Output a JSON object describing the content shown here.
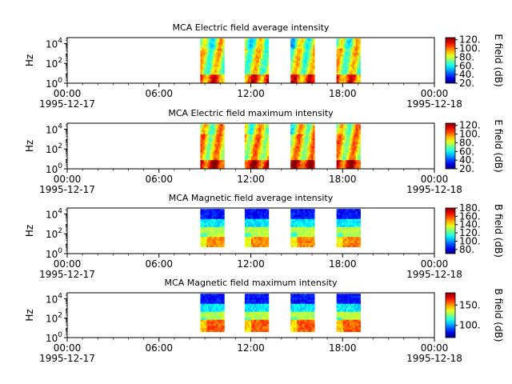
{
  "chart_data": [
    {
      "type": "heatmap",
      "title": "MCA  Electric field average intensity",
      "ylabel": "Hz",
      "colorbar_label": "E field (dB)",
      "colorbar_ticks": [
        "20.",
        "40.",
        "60.",
        "80.",
        "100.",
        "120."
      ],
      "colorbar_range": [
        20,
        125
      ],
      "yticks": [
        {
          "base": "10",
          "exp": "0"
        },
        {
          "base": "10",
          "exp": "2"
        },
        {
          "base": "10",
          "exp": "4"
        }
      ],
      "xticks": [
        {
          "time": "00:00",
          "date": "1995-12-17"
        },
        {
          "time": "06:00",
          "date": ""
        },
        {
          "time": "12:00",
          "date": ""
        },
        {
          "time": "18:00",
          "date": ""
        },
        {
          "time": "00:00",
          "date": "1995-12-18"
        }
      ],
      "xlim_hours": [
        0,
        24
      ],
      "ylim_log10": [
        0,
        4.6
      ],
      "data_windows_hours": [
        [
          8.7,
          10.2
        ],
        [
          11.6,
          13.1
        ],
        [
          14.6,
          16.1
        ],
        [
          17.6,
          19.1
        ]
      ],
      "freq_range_log10": [
        0.1,
        4.5
      ]
    },
    {
      "type": "heatmap",
      "title": "MCA  Electric field maximum intensity",
      "ylabel": "Hz",
      "colorbar_label": "E field (dB)",
      "colorbar_ticks": [
        "20.",
        "40.",
        "60.",
        "80.",
        "100.",
        "120."
      ],
      "colorbar_range": [
        20,
        125
      ],
      "yticks": [
        {
          "base": "10",
          "exp": "0"
        },
        {
          "base": "10",
          "exp": "2"
        },
        {
          "base": "10",
          "exp": "4"
        }
      ],
      "xticks": [
        {
          "time": "00:00",
          "date": "1995-12-17"
        },
        {
          "time": "06:00",
          "date": ""
        },
        {
          "time": "12:00",
          "date": ""
        },
        {
          "time": "18:00",
          "date": ""
        },
        {
          "time": "00:00",
          "date": "1995-12-18"
        }
      ],
      "xlim_hours": [
        0,
        24
      ],
      "ylim_log10": [
        0,
        4.6
      ],
      "data_windows_hours": [
        [
          8.7,
          10.2
        ],
        [
          11.6,
          13.1
        ],
        [
          14.6,
          16.1
        ],
        [
          17.6,
          19.1
        ]
      ],
      "freq_range_log10": [
        0.1,
        4.5
      ]
    },
    {
      "type": "heatmap",
      "title": "MCA  Magnetic field average intensity",
      "ylabel": "Hz",
      "colorbar_label": "B field (dB)",
      "colorbar_ticks": [
        "80.",
        "100.",
        "120.",
        "140.",
        "160.",
        "180."
      ],
      "colorbar_range": [
        70,
        180
      ],
      "yticks": [
        {
          "base": "10",
          "exp": "0"
        },
        {
          "base": "10",
          "exp": "2"
        },
        {
          "base": "10",
          "exp": "4"
        }
      ],
      "xticks": [
        {
          "time": "00:00",
          "date": "1995-12-17"
        },
        {
          "time": "06:00",
          "date": ""
        },
        {
          "time": "12:00",
          "date": ""
        },
        {
          "time": "18:00",
          "date": ""
        },
        {
          "time": "00:00",
          "date": "1995-12-18"
        }
      ],
      "xlim_hours": [
        0,
        24
      ],
      "ylim_log10": [
        0,
        4.6
      ],
      "data_windows_hours": [
        [
          8.7,
          10.2
        ],
        [
          11.6,
          13.1
        ],
        [
          14.6,
          16.1
        ],
        [
          17.6,
          19.1
        ]
      ],
      "freq_range_log10": [
        0.7,
        4.5
      ]
    },
    {
      "type": "heatmap",
      "title": "MCA  Magnetic field maximum intensity",
      "ylabel": "Hz",
      "colorbar_label": "B field (dB)",
      "colorbar_ticks": [
        "100.",
        "150."
      ],
      "colorbar_range": [
        70,
        180
      ],
      "yticks": [
        {
          "base": "10",
          "exp": "0"
        },
        {
          "base": "10",
          "exp": "2"
        },
        {
          "base": "10",
          "exp": "4"
        }
      ],
      "xticks": [
        {
          "time": "00:00",
          "date": "1995-12-17"
        },
        {
          "time": "06:00",
          "date": ""
        },
        {
          "time": "12:00",
          "date": ""
        },
        {
          "time": "18:00",
          "date": ""
        },
        {
          "time": "00:00",
          "date": "1995-12-18"
        }
      ],
      "xlim_hours": [
        0,
        24
      ],
      "ylim_log10": [
        0,
        4.6
      ],
      "data_windows_hours": [
        [
          8.7,
          10.2
        ],
        [
          11.6,
          13.1
        ],
        [
          14.6,
          16.1
        ],
        [
          17.6,
          19.1
        ]
      ],
      "freq_range_log10": [
        0.7,
        4.5
      ]
    }
  ]
}
